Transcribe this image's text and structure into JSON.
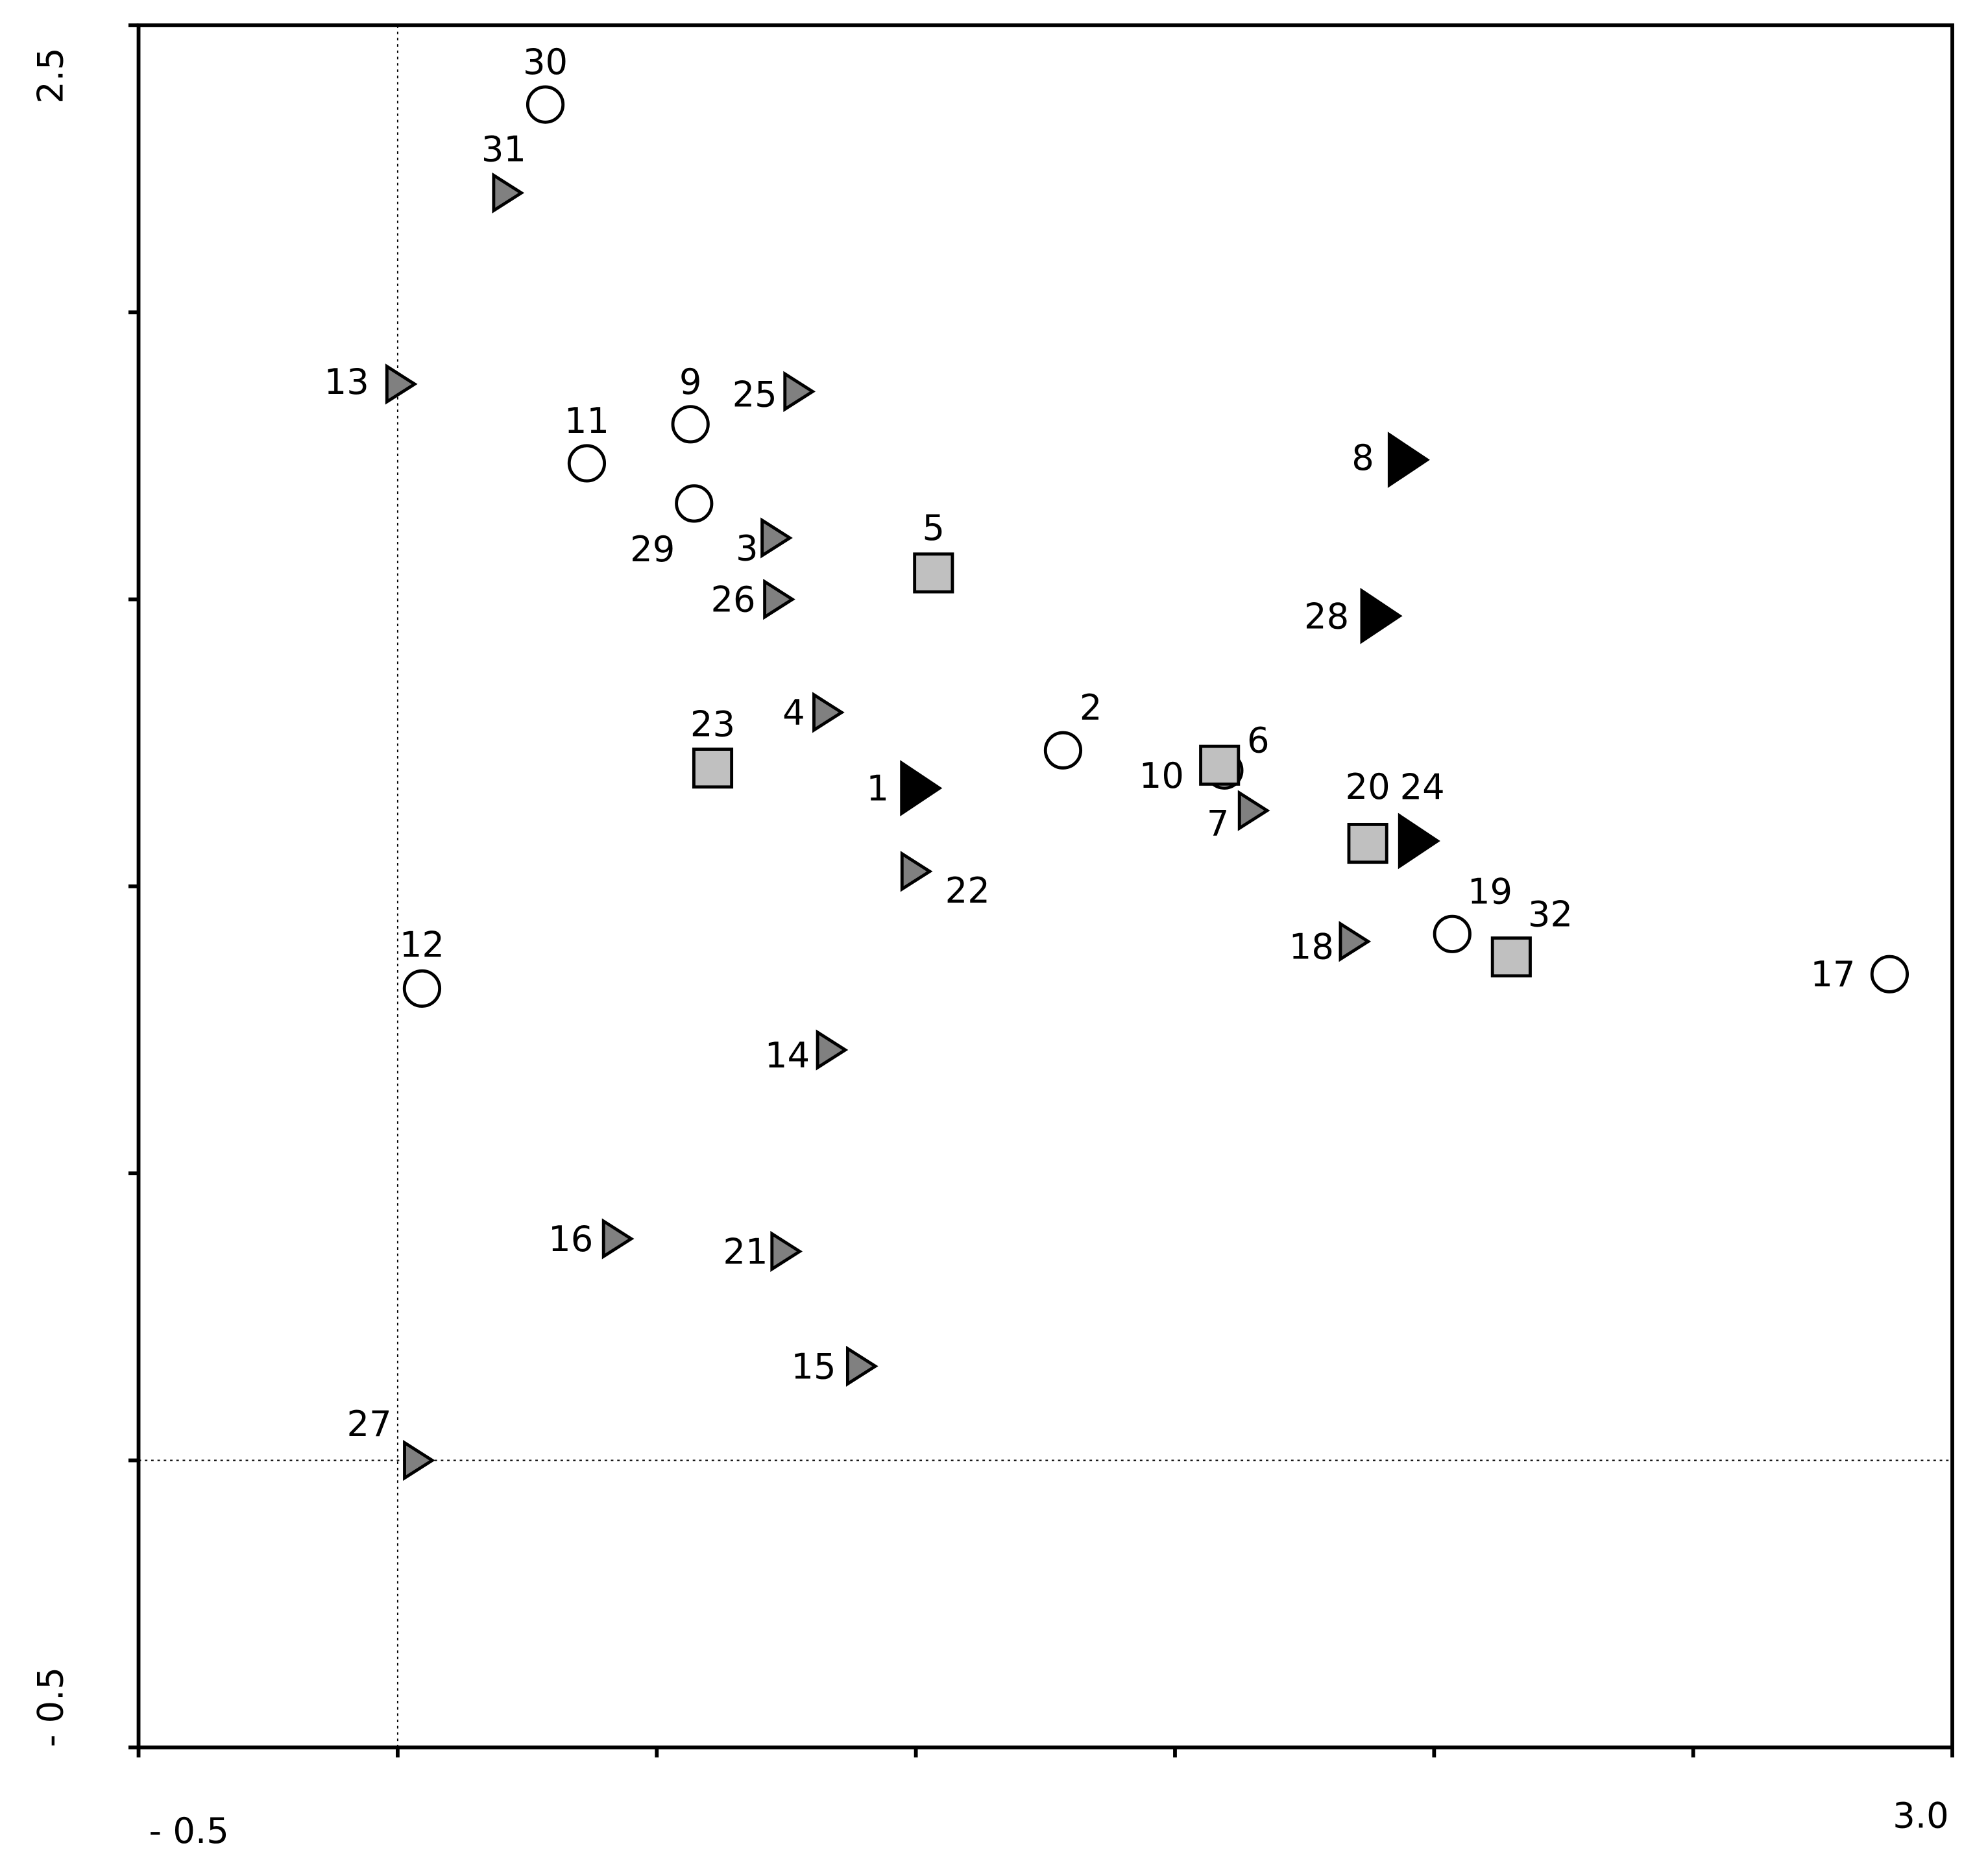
{
  "chart_data": {
    "type": "scatter",
    "xlim": [
      -0.5,
      3.0
    ],
    "ylim": [
      -0.5,
      2.5
    ],
    "xticks": [
      {
        "value": -0.5,
        "label": "- 0.5"
      },
      {
        "value": 3.0,
        "label": "3.0"
      }
    ],
    "yticks": [
      {
        "value": -0.5,
        "label": "- 0.5"
      },
      2.5
    ],
    "xticks_minor": [
      0,
      0.5,
      1.0,
      1.5,
      2.0,
      2.5
    ],
    "yticks_minor": [
      0,
      0.5,
      1.0,
      1.5,
      2.0
    ],
    "reference_lines": {
      "x": 0,
      "y": 0
    },
    "series": [
      {
        "marker": "circle",
        "color": "#ffffff",
        "labels": [
          "30",
          "11",
          "9",
          "29",
          "2",
          "6",
          "19",
          "17",
          "12"
        ],
        "x": [
          0.285,
          0.365,
          0.565,
          0.572,
          1.284,
          1.595,
          2.035,
          2.879,
          0.047
        ],
        "values": [
          2.362,
          1.737,
          1.805,
          1.667,
          1.237,
          1.202,
          0.917,
          0.847,
          0.822
        ]
      },
      {
        "marker": "square",
        "color": "#c0c0c0",
        "labels": [
          "5",
          "23",
          "10",
          "20",
          "32"
        ],
        "x": [
          1.034,
          0.608,
          1.586,
          1.872,
          2.149
        ],
        "values": [
          1.546,
          1.206,
          1.211,
          1.075,
          0.877
        ]
      },
      {
        "marker": "triangle",
        "color": "#808080",
        "labels": [
          "31",
          "13",
          "25",
          "3",
          "26",
          "4",
          "7",
          "22",
          "18",
          "14",
          "16",
          "21",
          "15",
          "27"
        ],
        "x": [
          0.212,
          0.006,
          0.774,
          0.73,
          0.735,
          0.83,
          1.651,
          1.0,
          1.846,
          0.837,
          0.424,
          0.749,
          0.895,
          0.04
        ],
        "values": [
          2.208,
          1.875,
          1.862,
          1.607,
          1.5,
          1.303,
          1.132,
          1.026,
          0.904,
          0.715,
          0.386,
          0.364,
          0.164,
          0.0
        ]
      },
      {
        "marker": "triangle",
        "color": "#000000",
        "labels": [
          "8",
          "28",
          "1",
          "24"
        ],
        "x": [
          1.95,
          1.897,
          1.009,
          1.97
        ],
        "values": [
          1.743,
          1.471,
          1.171,
          1.079
        ]
      }
    ]
  }
}
